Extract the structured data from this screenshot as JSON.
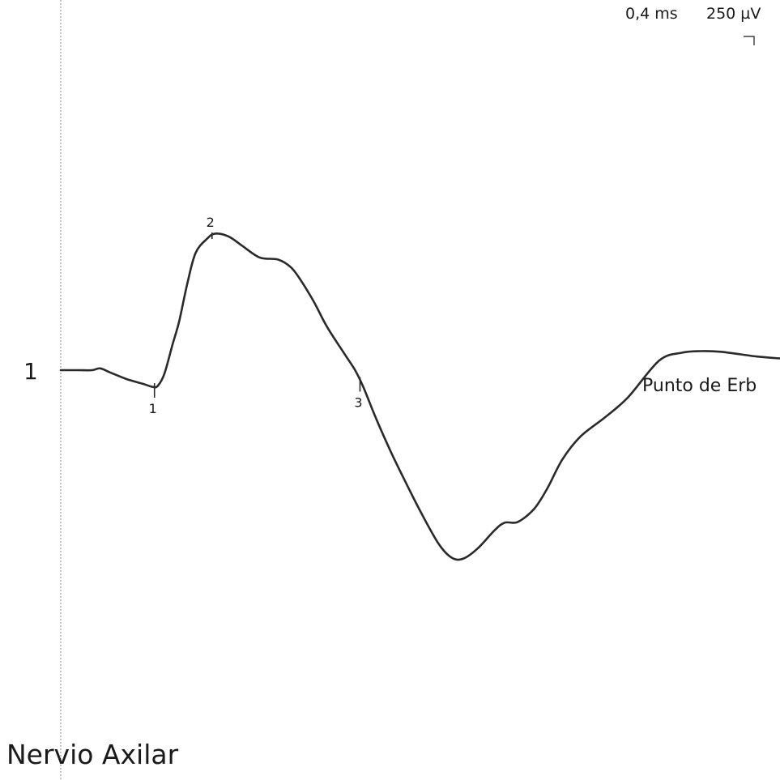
{
  "panel_title": "Nervio Axilar",
  "channel_number": "1",
  "trace_label": "Punto de Erb",
  "scale": {
    "time_per_div": "0,4 ms",
    "amplitude_per_div": "250 µV"
  },
  "colors": {
    "trace": "#2a2a2a",
    "baseline_marker": "#888888"
  },
  "chart_data": {
    "type": "line",
    "title": "Nervio Axilar",
    "series": [
      {
        "name": "Punto de Erb",
        "x_unit": "ms",
        "y_unit": "µV",
        "points": [
          [
            0.0,
            0
          ],
          [
            0.1,
            0
          ],
          [
            0.19,
            0
          ],
          [
            0.24,
            7
          ],
          [
            0.3,
            -9
          ],
          [
            0.4,
            -35
          ],
          [
            0.5,
            -54
          ],
          [
            0.56,
            -66
          ],
          [
            0.59,
            -62
          ],
          [
            0.63,
            -15
          ],
          [
            0.68,
            101
          ],
          [
            0.72,
            192
          ],
          [
            0.77,
            342
          ],
          [
            0.82,
            462
          ],
          [
            0.89,
            518
          ],
          [
            0.94,
            538
          ],
          [
            1.02,
            527
          ],
          [
            1.1,
            492
          ],
          [
            1.21,
            444
          ],
          [
            1.32,
            436
          ],
          [
            1.4,
            405
          ],
          [
            1.46,
            354
          ],
          [
            1.54,
            269
          ],
          [
            1.62,
            170
          ],
          [
            1.73,
            60
          ],
          [
            1.79,
            0
          ],
          [
            1.84,
            -66
          ],
          [
            1.92,
            -194
          ],
          [
            2.01,
            -325
          ],
          [
            2.09,
            -432
          ],
          [
            2.19,
            -560
          ],
          [
            2.3,
            -686
          ],
          [
            2.38,
            -740
          ],
          [
            2.45,
            -742
          ],
          [
            2.54,
            -700
          ],
          [
            2.64,
            -630
          ],
          [
            2.7,
            -601
          ],
          [
            2.78,
            -598
          ],
          [
            2.88,
            -546
          ],
          [
            2.96,
            -465
          ],
          [
            3.05,
            -353
          ],
          [
            3.16,
            -262
          ],
          [
            3.31,
            -186
          ],
          [
            3.45,
            -107
          ],
          [
            3.64,
            38
          ],
          [
            3.78,
            69
          ],
          [
            3.89,
            75
          ],
          [
            4.02,
            72
          ],
          [
            4.23,
            54
          ],
          [
            4.38,
            46
          ]
        ]
      }
    ],
    "markers": [
      {
        "label": "1",
        "x": 0.57,
        "y": -64
      },
      {
        "label": "2",
        "x": 0.92,
        "y": 536
      },
      {
        "label": "3",
        "x": 1.82,
        "y": -40
      }
    ],
    "x_axis": {
      "label": "",
      "range": [
        0,
        4.38
      ],
      "grid": false
    },
    "y_axis": {
      "label": "",
      "range": [
        -1250,
        1250
      ],
      "grid": false
    },
    "stimulus_marker": "dotted vertical line at 0 ms"
  }
}
